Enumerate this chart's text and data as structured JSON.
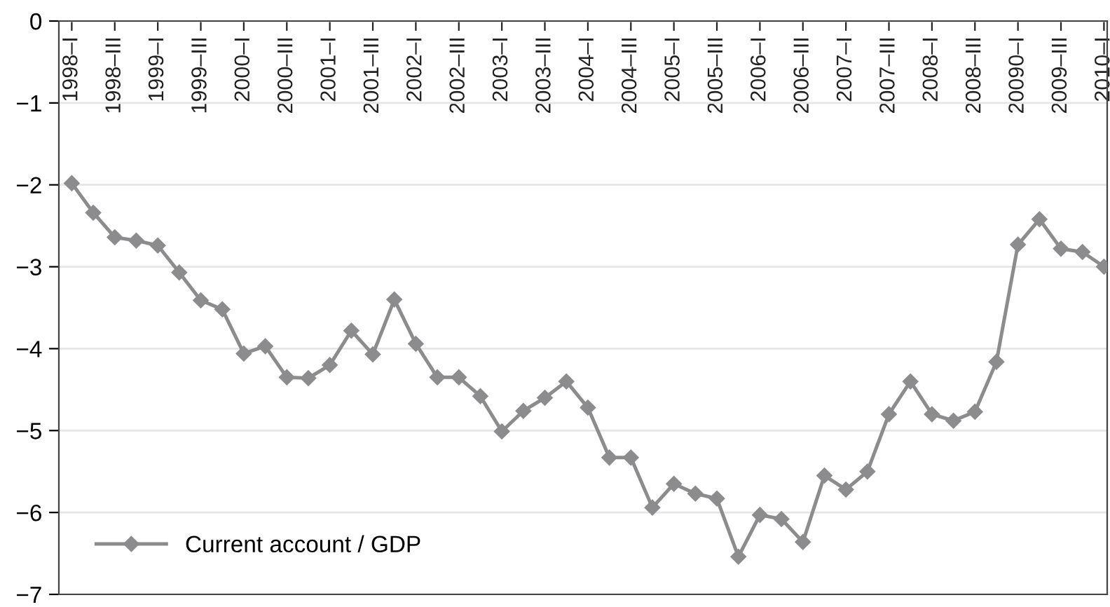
{
  "chart_data": {
    "type": "line",
    "categories": [
      "1998–I",
      null,
      "1998–III",
      null,
      "1999–I",
      null,
      "1999–III",
      null,
      "2000–I",
      null,
      "2000–III",
      null,
      "2001–I",
      null,
      "2001–III",
      null,
      "2002–I",
      null,
      "2002–III",
      null,
      "2003–I",
      null,
      "2003–III",
      null,
      "2004–I",
      null,
      "2004–III",
      null,
      "2005–I",
      null,
      "2005–III",
      null,
      "2006–I",
      null,
      "2006–III",
      null,
      "2007–I",
      null,
      "2007–III",
      null,
      "2008–I",
      null,
      "2008–III",
      null,
      "20090–I",
      null,
      "2009–III",
      null,
      "2010–I"
    ],
    "series": [
      {
        "name": "Current account / GDP",
        "color": "#8c8c8e",
        "values": [
          -1.98,
          -2.34,
          -2.64,
          -2.68,
          -2.74,
          -3.07,
          -3.41,
          -3.52,
          -4.06,
          -3.97,
          -4.35,
          -4.36,
          -4.2,
          -3.78,
          -4.07,
          -3.4,
          -3.94,
          -4.35,
          -4.35,
          -4.58,
          -5.01,
          -4.76,
          -4.6,
          -4.4,
          -4.72,
          -5.33,
          -5.33,
          -5.94,
          -5.65,
          -5.77,
          -5.83,
          -6.54,
          -6.03,
          -6.08,
          -6.36,
          -5.55,
          -5.72,
          -5.5,
          -4.8,
          -4.4,
          -4.8,
          -4.88,
          -4.77,
          -4.16,
          -2.73,
          -2.42,
          -2.78,
          -2.82,
          -3.0
        ]
      }
    ],
    "ylim": [
      -7,
      0
    ],
    "yticks": [
      0,
      {
        "value": -1,
        "label": "−1"
      },
      {
        "value": -2,
        "label": "−2"
      },
      {
        "value": -3,
        "label": "−3"
      },
      {
        "value": -4,
        "label": "−4"
      },
      {
        "value": -5,
        "label": "−5"
      },
      {
        "value": -6,
        "label": "−6"
      },
      {
        "value": -7,
        "label": "−7"
      }
    ],
    "grid": "y",
    "legend": "bottom left",
    "marker": "diamond",
    "line_style": "solid"
  }
}
